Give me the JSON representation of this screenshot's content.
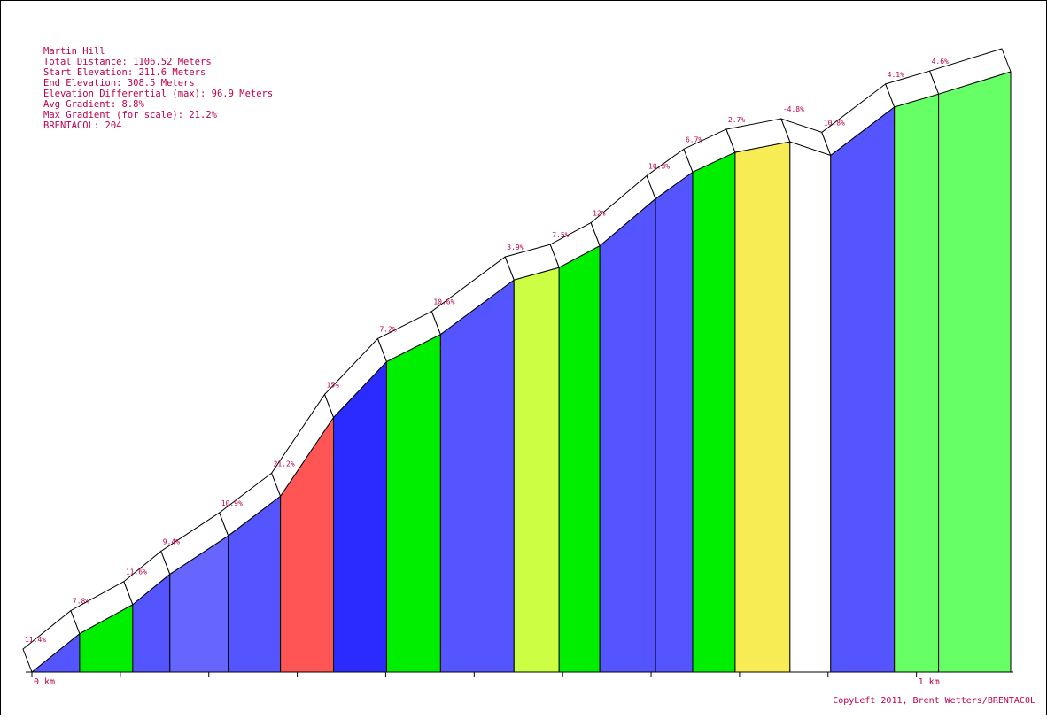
{
  "chart_data": {
    "type": "area",
    "title": "Martin Hill",
    "info": {
      "total_distance": "Total Distance: 1106.52 Meters",
      "start_elevation": "Start Elevation: 211.6 Meters",
      "end_elevation": "End Elevation: 308.5 Meters",
      "elevation_differential": "Elevation Differential (max): 96.9 Meters",
      "avg_gradient": "Avg Gradient: 8.8%",
      "max_gradient": "Max Gradient (for scale): 21.2%",
      "brentacol": "BRENTACOL: 204"
    },
    "xlabel": "",
    "ylabel": "",
    "x_unit": "km",
    "x_ticks": [
      {
        "km": 0,
        "label": "0 km"
      },
      {
        "km": 0.1,
        "label": ""
      },
      {
        "km": 0.2,
        "label": ""
      },
      {
        "km": 0.3,
        "label": ""
      },
      {
        "km": 0.4,
        "label": ""
      },
      {
        "km": 0.5,
        "label": ""
      },
      {
        "km": 0.6,
        "label": ""
      },
      {
        "km": 0.7,
        "label": ""
      },
      {
        "km": 0.8,
        "label": ""
      },
      {
        "km": 0.9,
        "label": ""
      },
      {
        "km": 1.0,
        "label": "1 km"
      }
    ],
    "xlim": [
      0,
      1.1065
    ],
    "ylim": [
      211.6,
      308.5
    ],
    "segments": [
      {
        "start_km": 0.0,
        "end_km": 0.054,
        "elev_start": 211.6,
        "elev_end": 217.8,
        "gradient_label": "11.4%",
        "color": "#5555ff"
      },
      {
        "start_km": 0.054,
        "end_km": 0.114,
        "elev_start": 217.8,
        "elev_end": 222.5,
        "gradient_label": "7.8%",
        "color": "#00ee00"
      },
      {
        "start_km": 0.114,
        "end_km": 0.156,
        "elev_start": 222.5,
        "elev_end": 227.4,
        "gradient_label": "11.6%",
        "color": "#5555ff"
      },
      {
        "start_km": 0.156,
        "end_km": 0.222,
        "elev_start": 227.4,
        "elev_end": 233.6,
        "gradient_label": "9.4%",
        "color": "#6666ff"
      },
      {
        "start_km": 0.222,
        "end_km": 0.281,
        "elev_start": 233.6,
        "elev_end": 240.0,
        "gradient_label": "10.9%",
        "color": "#5555ff"
      },
      {
        "start_km": 0.281,
        "end_km": 0.341,
        "elev_start": 240.0,
        "elev_end": 252.7,
        "gradient_label": "21.2%",
        "color": "#ff5555"
      },
      {
        "start_km": 0.341,
        "end_km": 0.401,
        "elev_start": 252.7,
        "elev_end": 261.7,
        "gradient_label": "15%",
        "color": "#2b2bff"
      },
      {
        "start_km": 0.401,
        "end_km": 0.462,
        "elev_start": 261.7,
        "elev_end": 266.1,
        "gradient_label": "7.2%",
        "color": "#00ee00"
      },
      {
        "start_km": 0.462,
        "end_km": 0.545,
        "elev_start": 266.1,
        "elev_end": 274.9,
        "gradient_label": "10.6%",
        "color": "#5555ff"
      },
      {
        "start_km": 0.545,
        "end_km": 0.596,
        "elev_start": 274.9,
        "elev_end": 276.9,
        "gradient_label": "3.9%",
        "color": "#ccff44"
      },
      {
        "start_km": 0.596,
        "end_km": 0.642,
        "elev_start": 276.9,
        "elev_end": 280.4,
        "gradient_label": "7.5%",
        "color": "#00ee00"
      },
      {
        "start_km": 0.642,
        "end_km": 0.705,
        "elev_start": 280.4,
        "elev_end": 288.0,
        "gradient_label": "12%",
        "color": "#5555ff"
      },
      {
        "start_km": 0.705,
        "end_km": 0.747,
        "elev_start": 288.0,
        "elev_end": 292.3,
        "gradient_label": "10.3%",
        "color": "#5555ff"
      },
      {
        "start_km": 0.747,
        "end_km": 0.795,
        "elev_start": 292.3,
        "elev_end": 295.5,
        "gradient_label": "6.7%",
        "color": "#00ee00"
      },
      {
        "start_km": 0.795,
        "end_km": 0.857,
        "elev_start": 295.5,
        "elev_end": 297.2,
        "gradient_label": "2.7%",
        "color": "#f8ec55"
      },
      {
        "start_km": 0.857,
        "end_km": 0.903,
        "elev_start": 297.2,
        "elev_end": 295.0,
        "gradient_label": "-4.8%",
        "color": "#ffffff"
      },
      {
        "start_km": 0.903,
        "end_km": 0.975,
        "elev_start": 295.0,
        "elev_end": 302.8,
        "gradient_label": "10.8%",
        "color": "#5555ff"
      },
      {
        "start_km": 0.975,
        "end_km": 1.025,
        "elev_start": 302.8,
        "elev_end": 304.9,
        "gradient_label": "4.1%",
        "color": "#66ff66"
      },
      {
        "start_km": 1.025,
        "end_km": 1.1065,
        "elev_start": 304.9,
        "elev_end": 308.5,
        "gradient_label": "4.6%",
        "color": "#66ff66"
      }
    ]
  },
  "footer": {
    "copyright": "CopyLeft 2011, Brent Wetters/BRENTACOL"
  }
}
